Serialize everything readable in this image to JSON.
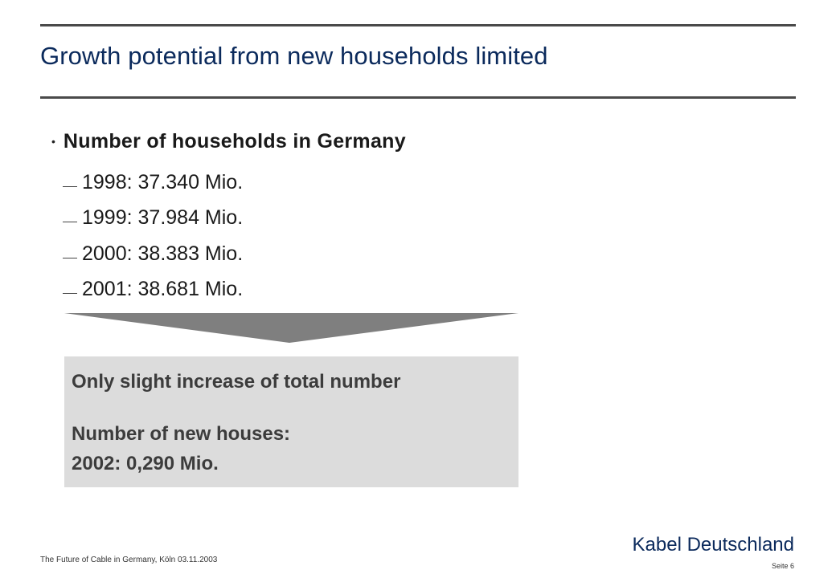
{
  "slide": {
    "title": "Growth potential from new households limited",
    "bullet": {
      "marker": "•",
      "text": "Number of households in Germany"
    },
    "sub_items": [
      {
        "text": "1998: 37.340 Mio."
      },
      {
        "text": "1999: 37.984 Mio."
      },
      {
        "text": "2000: 38.383 Mio."
      },
      {
        "text": "2001: 38.681 Mio."
      }
    ],
    "conclusion_box": {
      "heading": "Only slight increase of total number",
      "line1": "Number of new houses:",
      "line2": "2002: 0,290 Mio."
    }
  },
  "footer": {
    "presentation": "The Future of Cable in Germany, Köln 03.11.2003",
    "brand": "Kabel Deutschland",
    "page": "Seite 6"
  },
  "colors": {
    "title": "#0b2a5c",
    "rule": "#4a4a4a",
    "arrow": "#7f7f7f",
    "box_fill": "#dcdcdc",
    "box_text": "#3c3c3c"
  }
}
